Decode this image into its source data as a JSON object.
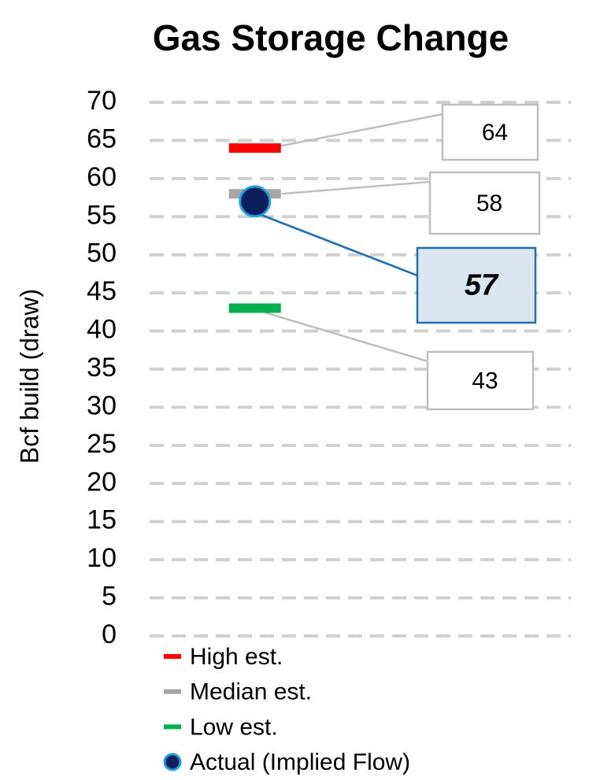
{
  "chart_data": {
    "type": "dot",
    "title": "Gas Storage Change",
    "y_label": "Bcf build (draw)",
    "categories": [
      null
    ],
    "series": [
      {
        "name": "High est.",
        "color": "#ff0000",
        "marker": "dash",
        "values": [
          64
        ]
      },
      {
        "name": "Median est.",
        "color": "#a6a6a6",
        "marker": "dash",
        "values": [
          58
        ]
      },
      {
        "name": "Low est.",
        "color": "#00b050",
        "marker": "dash",
        "values": [
          43
        ]
      },
      {
        "name": "Actual (Implied Flow)",
        "color": "#0a1f5c",
        "marker": "circle",
        "values": [
          57
        ]
      }
    ],
    "ylim": [
      0,
      70
    ],
    "yticks": [
      0,
      5,
      10,
      15,
      20,
      25,
      30,
      35,
      40,
      45,
      50,
      55,
      60,
      65,
      70
    ],
    "grid": true,
    "legend": "bottom"
  }
}
